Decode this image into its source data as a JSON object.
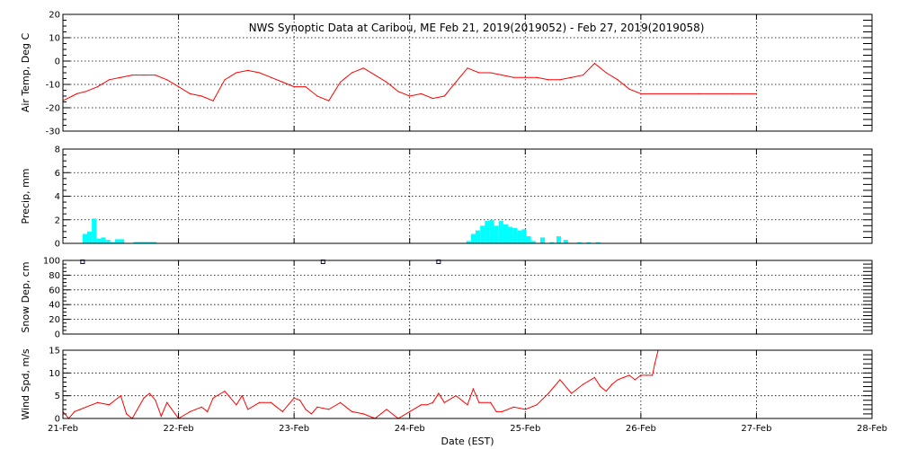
{
  "chart_data": {
    "type": "line",
    "title": "NWS Synoptic Data at Caribou, ME    Feb 21, 2019(2019052) - Feb 27, 2019(2019058)",
    "xlabel": "Date (EST)",
    "x_ticks": [
      "21-Feb",
      "22-Feb",
      "23-Feb",
      "24-Feb",
      "25-Feb",
      "26-Feb",
      "27-Feb",
      "28-Feb"
    ],
    "xlim": [
      0,
      7
    ],
    "grid": true,
    "colors": {
      "temp": "#ff0000",
      "precip": "#00ffff",
      "snow": "#0000aa",
      "wind": "#ff0000"
    },
    "panels": [
      {
        "id": "temp",
        "ylabel": "Air Temp, Deg C",
        "ylim": [
          -30,
          20
        ],
        "yticks": [
          "-30",
          "-20",
          "-10",
          "0",
          "10",
          "20"
        ],
        "type": "line",
        "series": [
          {
            "x": [
              0.0,
              0.08,
              0.12,
              0.2,
              0.3,
              0.4,
              0.5,
              0.6,
              0.7,
              0.8,
              0.9,
              1.0,
              1.1,
              1.2,
              1.3,
              1.4,
              1.5,
              1.6,
              1.7,
              1.8,
              1.9,
              2.0,
              2.1,
              2.2,
              2.3,
              2.4,
              2.5,
              2.6,
              2.7,
              2.8,
              2.9,
              3.0,
              3.1,
              3.2,
              3.3,
              3.4,
              3.5,
              3.6,
              3.7,
              3.8,
              3.9,
              4.0,
              4.1,
              4.2,
              4.3,
              4.4,
              4.5,
              4.6,
              4.7,
              4.8,
              4.9,
              5.0,
              5.5,
              5.8,
              6.0
            ],
            "values": [
              -17,
              -15,
              -14,
              -13,
              -11,
              -8,
              -7,
              -6,
              -6,
              -6,
              -8,
              -11,
              -14,
              -15,
              -17,
              -8,
              -5,
              -4,
              -5,
              -7,
              -9,
              -11,
              -11,
              -15,
              -17,
              -9,
              -5,
              -3,
              -6,
              -9,
              -13,
              -15,
              -14,
              -16,
              -15,
              -9,
              -3,
              -5,
              -5,
              -6,
              -7,
              -7,
              -7,
              -8,
              -8,
              -7,
              -6,
              -1,
              -5,
              -8,
              -12,
              -14,
              -14,
              -14,
              -14
            ]
          }
        ]
      },
      {
        "id": "precip",
        "ylabel": "Precip, mm",
        "ylim": [
          0,
          8
        ],
        "yticks": [
          "0",
          "2",
          "4",
          "6",
          "8"
        ],
        "type": "bar",
        "series": [
          {
            "x": [
              0.19,
              0.23,
              0.27,
              0.31,
              0.35,
              0.39,
              0.43,
              0.47,
              0.51,
              0.55,
              0.59,
              0.63,
              0.67,
              0.71,
              0.75,
              0.79,
              0.83,
              0.87,
              0.91,
              3.51,
              3.55,
              3.59,
              3.63,
              3.67,
              3.71,
              3.75,
              3.79,
              3.83,
              3.87,
              3.91,
              3.95,
              3.99,
              4.03,
              4.07,
              4.15,
              4.23,
              4.29,
              4.35,
              4.47,
              4.55,
              4.63
            ],
            "values": [
              0.8,
              1.0,
              2.1,
              0.4,
              0.5,
              0.3,
              0.1,
              0.35,
              0.35,
              0.0,
              0.0,
              0.12,
              0.12,
              0.12,
              0.12,
              0.12,
              0.0,
              0.0,
              0.0,
              0.2,
              0.8,
              1.1,
              1.5,
              1.9,
              2.0,
              1.5,
              1.9,
              1.6,
              1.4,
              1.3,
              1.1,
              1.2,
              0.6,
              0.2,
              0.5,
              0.1,
              0.6,
              0.3,
              0.1,
              0.1,
              0.1
            ]
          }
        ]
      },
      {
        "id": "snow",
        "ylabel": "Snow Dep, cm",
        "ylim": [
          0,
          100
        ],
        "yticks": [
          "0",
          "20",
          "40",
          "60",
          "80",
          "100"
        ],
        "type": "scatter",
        "series": [
          {
            "x": [
              0.17,
              2.25,
              3.25
            ],
            "values": [
              100,
              100,
              100
            ]
          }
        ]
      },
      {
        "id": "wind",
        "ylabel": "Wind Spd, m/s",
        "ylim": [
          0,
          15
        ],
        "yticks": [
          "0",
          "5",
          "10",
          "15"
        ],
        "type": "line",
        "series": [
          {
            "x": [
              0.0,
              0.05,
              0.1,
              0.15,
              0.2,
              0.3,
              0.4,
              0.5,
              0.55,
              0.6,
              0.7,
              0.75,
              0.8,
              0.85,
              0.9,
              1.0,
              1.1,
              1.2,
              1.25,
              1.3,
              1.4,
              1.45,
              1.5,
              1.55,
              1.6,
              1.7,
              1.8,
              1.9,
              2.0,
              2.05,
              2.1,
              2.15,
              2.2,
              2.3,
              2.4,
              2.5,
              2.6,
              2.7,
              2.8,
              2.9,
              3.0,
              3.1,
              3.15,
              3.2,
              3.25,
              3.3,
              3.4,
              3.5,
              3.55,
              3.6,
              3.7,
              3.75,
              3.8,
              3.9,
              4.0,
              4.1,
              4.2,
              4.3,
              4.4,
              4.5,
              4.6,
              4.65,
              4.7,
              4.75,
              4.8,
              4.85,
              4.9,
              4.95,
              5.0,
              5.05,
              5.1,
              5.12,
              5.15
            ],
            "values": [
              1.5,
              0.0,
              1.5,
              2.0,
              2.5,
              3.5,
              3.0,
              5.0,
              1.0,
              0.0,
              4.5,
              5.5,
              4.0,
              0.5,
              3.5,
              0.0,
              1.5,
              2.5,
              1.5,
              4.5,
              6.0,
              4.5,
              3.0,
              5.0,
              2.0,
              3.5,
              3.5,
              1.5,
              4.5,
              4.0,
              2.0,
              1.0,
              2.5,
              2.0,
              3.5,
              1.5,
              1.0,
              0.0,
              2.0,
              0.0,
              1.5,
              3.0,
              3.0,
              3.5,
              5.5,
              3.5,
              5.0,
              3.0,
              6.5,
              3.5,
              3.5,
              1.5,
              1.5,
              2.5,
              2.0,
              3.0,
              5.5,
              8.5,
              5.5,
              7.5,
              9.0,
              7.0,
              6.0,
              7.5,
              8.5,
              9.0,
              9.5,
              8.5,
              9.5,
              9.5,
              9.5,
              12.0,
              15.0
            ]
          }
        ]
      }
    ]
  }
}
